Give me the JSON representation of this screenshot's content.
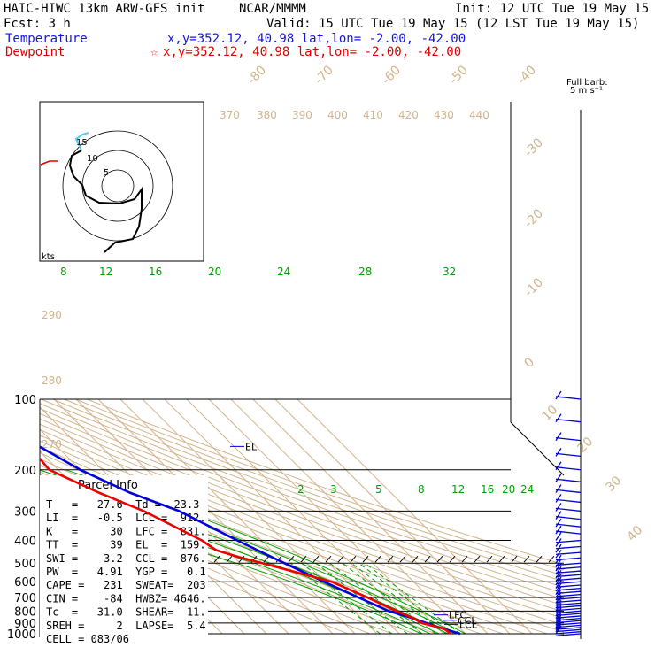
{
  "header": {
    "model": "HAIC-HIWC 13km ARW-GFS init",
    "org": "NCAR/MMMM",
    "init": "Init: 12 UTC Tue 19 May 15",
    "fcst": "Fcst:    3 h",
    "valid": "Valid: 15 UTC Tue 19 May 15 (12 LST Tue 19 May 15)",
    "temp_label": "Temperature",
    "temp_loc": "x,y=352.12, 40.98    lat,lon= -2.00, -42.00",
    "dew_label": "Dewpoint",
    "dew_loc": "x,y=352.12, 40.98    lat,lon= -2.00, -42.00",
    "star": "☆"
  },
  "colors": {
    "temperature": "#0000dd",
    "dewpoint": "#ee0000",
    "isotherm": "#d2b48c",
    "mixing": "#00a000",
    "barb": "#0000cc",
    "hodo_recent": "#55ccee"
  },
  "wind_legend": {
    "title": "Full barb:",
    "units": "5 m s⁻¹"
  },
  "hodograph": {
    "units_label": "kts",
    "ring_labels": [
      "5",
      "10",
      "15"
    ]
  },
  "pressure_labels": [
    "100",
    "200",
    "300",
    "400",
    "500",
    "600",
    "700",
    "800",
    "900",
    "1000"
  ],
  "isotherm_labels": [
    "-80",
    "-70",
    "-60",
    "-50",
    "-40",
    "-30",
    "-20",
    "-10",
    "0",
    "10",
    "20",
    "30",
    "40"
  ],
  "theta_labels": [
    "370",
    "380",
    "390",
    "400",
    "410",
    "420",
    "430",
    "440"
  ],
  "theta_low_labels": [
    "290",
    "280",
    "270"
  ],
  "mixing_labels_upper": [
    "8",
    "12",
    "16",
    "20",
    "24",
    "28",
    "32"
  ],
  "mixing_labels_lower": [
    "2",
    "3",
    "5",
    "8",
    "12",
    "16",
    "20",
    "24"
  ],
  "markers": {
    "el": "EL",
    "lfc": "LFC",
    "ccl": "CCL",
    "lcl": "LCL"
  },
  "parcel_info": {
    "title": "Parcel Info",
    "rows": [
      "T   =   27.6  Td =  23.3",
      "LI  =   -0.5  LCL =  912.",
      "K   =     30  LFC =  831.",
      "TT  =     39  EL  =  159.",
      "SWI =    3.2  CCL =  876.",
      "PW  =   4.91  YGP =   0.1",
      "CAPE =   231  SWEAT=  203",
      "CIN =    -84  HWBZ= 4646.",
      "Tc  =   31.0  SHEAR=  11.",
      "SREH =     2  LAPSE=  5.4",
      "CELL = 083/06"
    ]
  },
  "chart_data": {
    "type": "line",
    "title": "",
    "xlabel": "",
    "ylabel": "",
    "y_scale": "log-pressure",
    "ylim": [
      1000,
      100
    ],
    "series": [
      {
        "name": "Temperature",
        "x": [
          27.6,
          22.0,
          17.0,
          12.0,
          5.5,
          -2.0,
          -10.5,
          -20.0,
          -31.0,
          -44.0,
          -58.0,
          -70.0,
          -80.0,
          -70.0
        ],
        "y": [
          1000,
          950,
          900,
          850,
          800,
          700,
          600,
          500,
          400,
          300,
          250,
          200,
          150,
          100
        ]
      },
      {
        "name": "Dewpoint",
        "x": [
          23.3,
          22.5,
          15.0,
          13.0,
          9.0,
          2.0,
          -7.0,
          -30.0,
          -38.0,
          -45.0,
          -47.0,
          -60.0,
          -72.0,
          -84.0,
          -82.0,
          -70.0
        ],
        "y": [
          1000,
          950,
          900,
          850,
          800,
          700,
          600,
          500,
          470,
          440,
          400,
          300,
          250,
          200,
          150,
          100
        ]
      }
    ]
  }
}
